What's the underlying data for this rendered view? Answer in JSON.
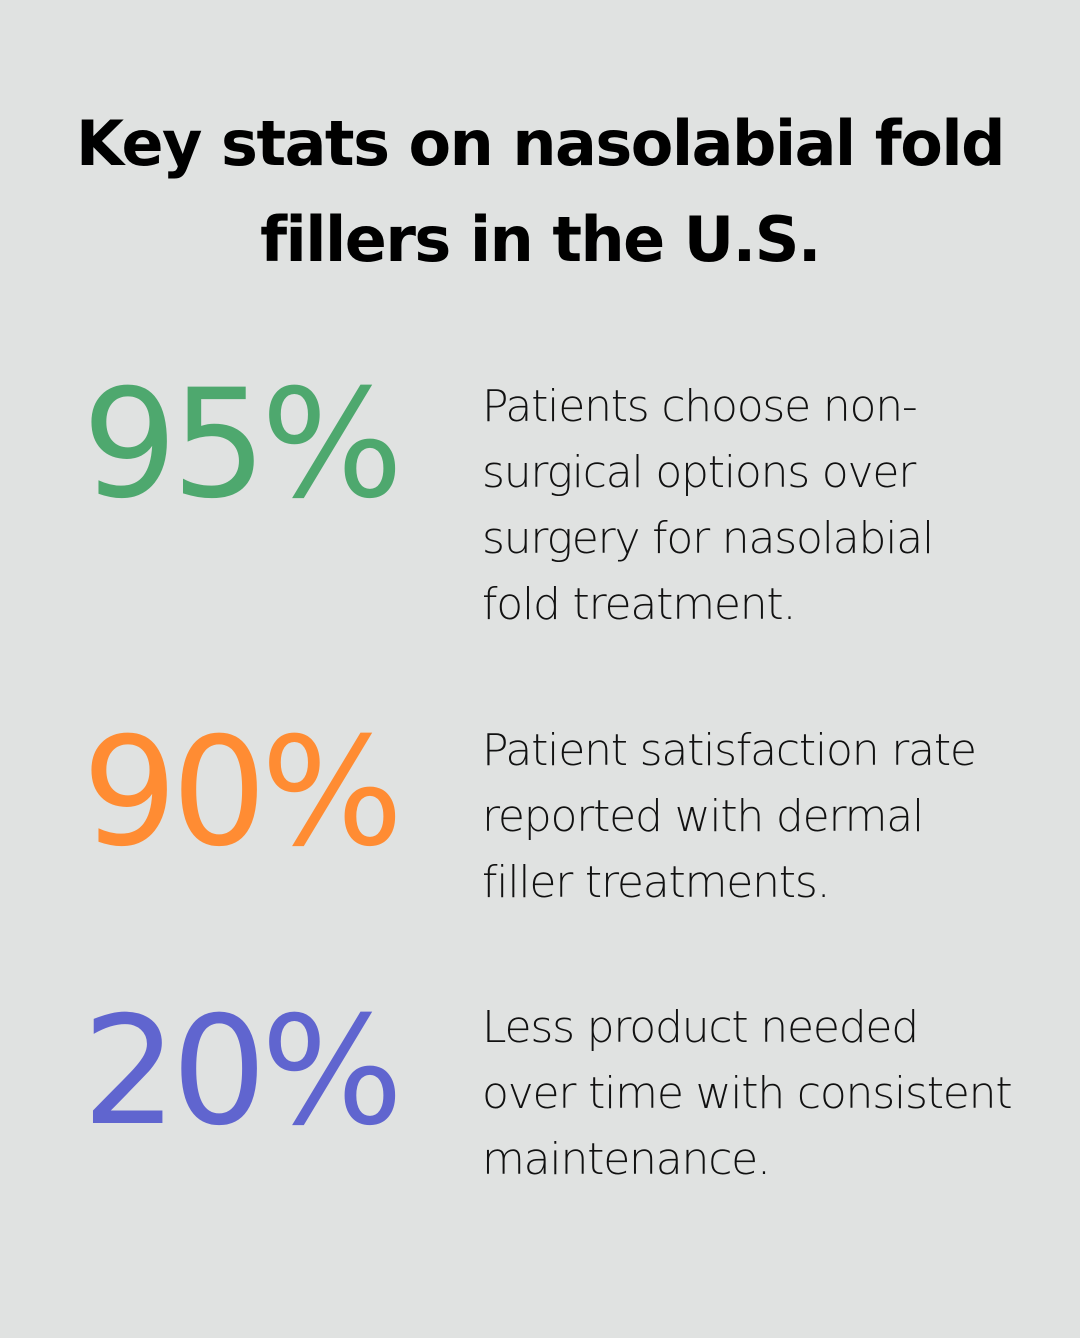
{
  "title": "Key stats on nasolabial fold fillers in the U.S.",
  "colors": {
    "background": "#E0E2E1",
    "green": "#4EA86E",
    "orange": "#FF8C33",
    "blue": "#6065CF",
    "text": "#000000"
  },
  "stats": [
    {
      "value": "95%",
      "color": "#4EA86E",
      "description": "Patients choose non-surgical options over surgery for nasolabial fold treatment."
    },
    {
      "value": "90%",
      "color": "#FF8C33",
      "description": "Patient satisfaction rate reported with dermal filler treatments."
    },
    {
      "value": "20%",
      "color": "#6065CF",
      "description": "Less product needed over time with consistent maintenance."
    }
  ]
}
